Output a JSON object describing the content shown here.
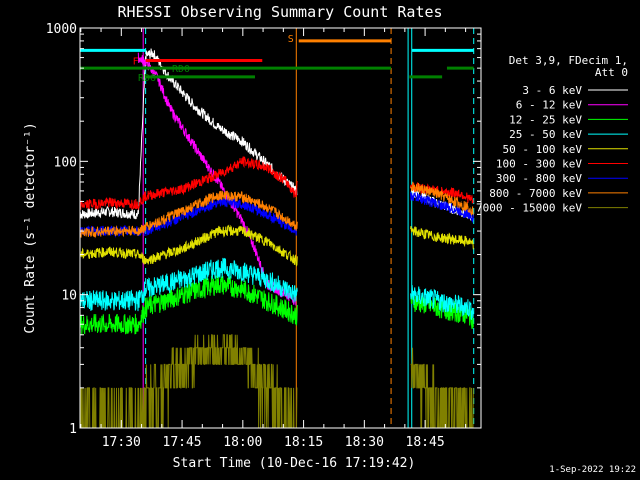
{
  "chart_data": {
    "type": "line",
    "title": "RHESSI Observing Summary Count Rates",
    "xlabel": "Start Time (10-Dec-16 17:19:42)",
    "ylabel": "Count Rate (s⁻¹ detector⁻¹)",
    "y_scale": "log",
    "ylim": [
      1,
      1000
    ],
    "y_ticks": [
      {
        "v": 1,
        "label": "1"
      },
      {
        "v": 10,
        "label": "10"
      },
      {
        "v": 100,
        "label": "100"
      },
      {
        "v": 1000,
        "label": "1000"
      }
    ],
    "xlim": [
      17.33,
      18.98
    ],
    "x_ticks": [
      {
        "v": 17.5,
        "label": "17:30"
      },
      {
        "v": 17.75,
        "label": "17:45"
      },
      {
        "v": 18.0,
        "label": "18:00"
      },
      {
        "v": 18.25,
        "label": "18:15"
      },
      {
        "v": 18.5,
        "label": "18:30"
      },
      {
        "v": 18.75,
        "label": "18:45"
      }
    ],
    "legend_header": [
      "Det 3,9, FDecim 1,",
      "Att 0"
    ],
    "legend_position": "right",
    "series": [
      {
        "name": "3 - 6 keV",
        "color": "#ffffff",
        "x": [
          17.33,
          17.45,
          17.57,
          17.6,
          17.63,
          17.7,
          17.8,
          17.9,
          18.0,
          18.1,
          18.18,
          18.22,
          18.695,
          18.78,
          18.85,
          18.93,
          18.95
        ],
        "y": [
          40,
          42,
          40,
          620,
          650,
          420,
          260,
          180,
          140,
          95,
          70,
          60,
          60,
          50,
          45,
          40,
          37
        ]
      },
      {
        "name": "6 - 12 keV",
        "color": "#ff00ff",
        "x": [
          17.57,
          17.6,
          17.65,
          17.7,
          17.8,
          17.9,
          18.0,
          18.05,
          18.1,
          18.18,
          18.22
        ],
        "y": [
          600,
          560,
          420,
          250,
          130,
          70,
          35,
          22,
          12,
          10,
          9
        ]
      },
      {
        "name": "12 - 25 keV",
        "color": "#00ff00",
        "x": [
          17.33,
          17.45,
          17.57,
          17.6,
          17.75,
          17.9,
          18.0,
          18.1,
          18.22,
          18.695,
          18.8,
          18.93,
          18.95
        ],
        "y": [
          6,
          6,
          6,
          8,
          10,
          12,
          11,
          9,
          7,
          9,
          8,
          7,
          6.5
        ]
      },
      {
        "name": "25 - 50 keV",
        "color": "#00ffff",
        "x": [
          17.33,
          17.45,
          17.57,
          17.6,
          17.75,
          17.9,
          18.0,
          18.1,
          18.22,
          18.695,
          18.8,
          18.93,
          18.95
        ],
        "y": [
          9,
          9,
          9,
          11,
          13,
          16,
          15,
          13,
          10,
          10,
          9,
          8,
          7.5
        ]
      },
      {
        "name": "50 - 100 keV",
        "color": "#e0e000",
        "x": [
          17.33,
          17.45,
          17.57,
          17.6,
          17.75,
          17.9,
          18.0,
          18.1,
          18.22,
          18.695,
          18.8,
          18.93,
          18.95
        ],
        "y": [
          20,
          21,
          20,
          18,
          22,
          30,
          30,
          25,
          18,
          30,
          27,
          25,
          23
        ]
      },
      {
        "name": "100 - 300 keV",
        "color": "#ff0000",
        "x": [
          17.33,
          17.45,
          17.57,
          17.6,
          17.75,
          17.9,
          18.0,
          18.1,
          18.18,
          18.22,
          18.23,
          18.695,
          18.8,
          18.9,
          18.95
        ],
        "y": [
          47,
          49,
          48,
          55,
          62,
          80,
          100,
          90,
          70,
          55,
          120,
          65,
          60,
          57,
          50
        ]
      },
      {
        "name": "300 - 800 keV",
        "color": "#0000ff",
        "x": [
          17.33,
          17.45,
          17.57,
          17.6,
          17.75,
          17.9,
          18.0,
          18.1,
          18.22,
          18.695,
          18.8,
          18.93,
          18.95
        ],
        "y": [
          30,
          30,
          30,
          30,
          38,
          50,
          48,
          40,
          30,
          55,
          48,
          40,
          38
        ]
      },
      {
        "name": "800 - 7000 keV",
        "color": "#ff8000",
        "x": [
          17.33,
          17.45,
          17.57,
          17.6,
          17.75,
          17.9,
          18.0,
          18.1,
          18.22,
          18.695,
          18.8,
          18.93,
          18.95
        ],
        "y": [
          29,
          30,
          30,
          32,
          42,
          56,
          54,
          45,
          33,
          65,
          57,
          45,
          42
        ]
      },
      {
        "name": "7000 - 15000 keV",
        "color": "#808000",
        "x": [
          17.33,
          17.45,
          17.57,
          17.6,
          17.7,
          17.8,
          17.9,
          18.0,
          18.1,
          18.22,
          18.695,
          18.8,
          18.93,
          18.95
        ],
        "y": [
          1.5,
          1.5,
          1.5,
          2,
          3,
          4,
          4.5,
          4,
          2.5,
          1.5,
          3,
          2,
          1.5,
          1.5
        ]
      }
    ],
    "annotations": [
      {
        "label": "S",
        "color": "#ff8000",
        "x_start": 18.23,
        "x_end": 18.61,
        "y": 800
      },
      {
        "label": "F",
        "color": "#ff0000",
        "x_start": 17.6,
        "x_end": 18.08,
        "y": 570
      },
      {
        "label": "RD0",
        "color": "#008000",
        "x_start": 17.33,
        "x_end": 18.61,
        "y": 500
      },
      {
        "label": "RD6",
        "color": "#008000",
        "x_start": 17.6,
        "x_end": 18.05,
        "y": 430
      }
    ],
    "extra_bars": [
      {
        "color": "#00ffff",
        "x_start": 17.33,
        "x_end": 17.6,
        "y": 680
      },
      {
        "color": "#00ffff",
        "x_start": 18.695,
        "x_end": 18.95,
        "y": 680
      },
      {
        "color": "#008000",
        "x_start": 18.685,
        "x_end": 18.82,
        "y": 430
      },
      {
        "color": "#008000",
        "x_start": 18.84,
        "x_end": 18.95,
        "y": 500
      }
    ],
    "vlines": [
      {
        "x": 17.33,
        "color": "#00ffff",
        "style": "solid"
      },
      {
        "x": 17.6,
        "color": "#00ffff",
        "style": "dashed"
      },
      {
        "x": 17.59,
        "color": "#ff00ff",
        "style": "solid"
      },
      {
        "x": 18.22,
        "color": "#ff8000",
        "style": "solid"
      },
      {
        "x": 18.61,
        "color": "#ff8000",
        "style": "dashed"
      },
      {
        "x": 18.68,
        "color": "#00ffff",
        "style": "solid"
      },
      {
        "x": 18.695,
        "color": "#00ffff",
        "style": "solid"
      },
      {
        "x": 18.95,
        "color": "#00ffff",
        "style": "dashed"
      }
    ],
    "footer": "1-Sep-2022 19:22"
  }
}
